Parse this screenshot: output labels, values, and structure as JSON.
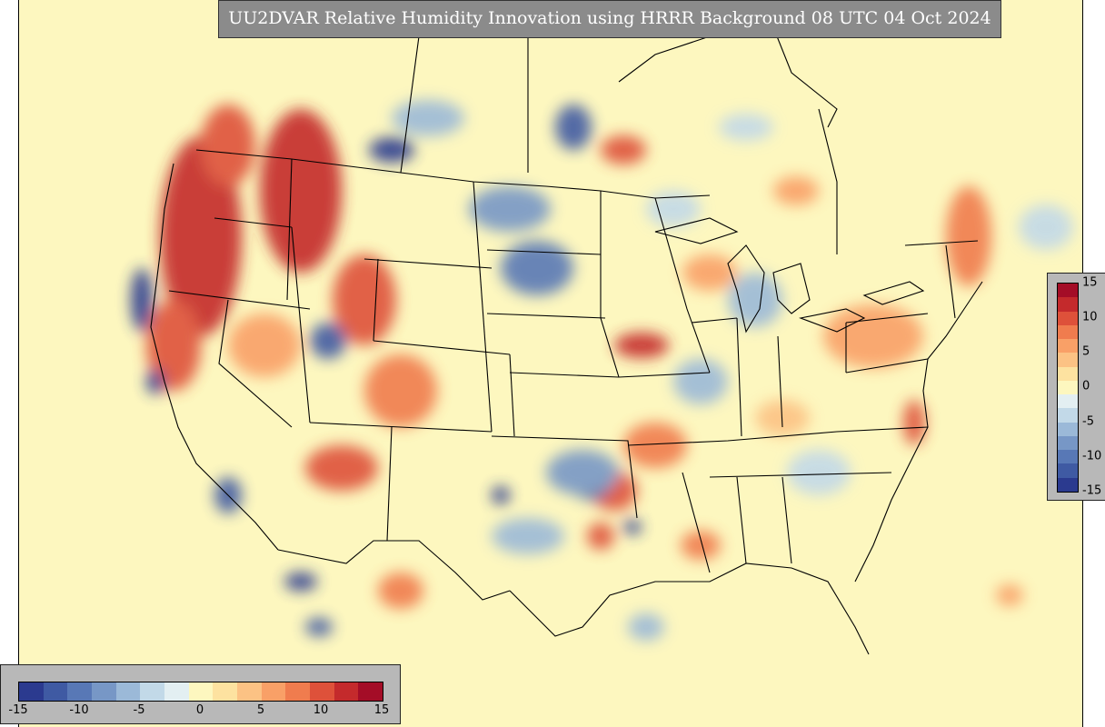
{
  "title": "UU2DVAR Relative Humidity Innovation using HRRR Background 08 UTC 04 Oct 2024",
  "colorbar_bottom": {
    "ticks": [
      "-15",
      "-10",
      "-5",
      "0",
      "5",
      "10",
      "15"
    ],
    "range": [
      -15,
      15
    ]
  },
  "colorbar_right": {
    "ticks": [
      "15",
      "10",
      "5",
      "0",
      "-5",
      "-10",
      "-15"
    ],
    "range": [
      -15,
      15
    ]
  },
  "colors": {
    "background_zero": "#fdf7bf",
    "ramp": [
      "#2b3a8f",
      "#3f5aa3",
      "#5878b6",
      "#7797c6",
      "#9bb9d8",
      "#c2d9e8",
      "#e3eff2",
      "#fdf7bf",
      "#fde2a0",
      "#fcc284",
      "#f9a067",
      "#f07c4e",
      "#de513a",
      "#c42a2c",
      "#a40d27"
    ]
  }
}
